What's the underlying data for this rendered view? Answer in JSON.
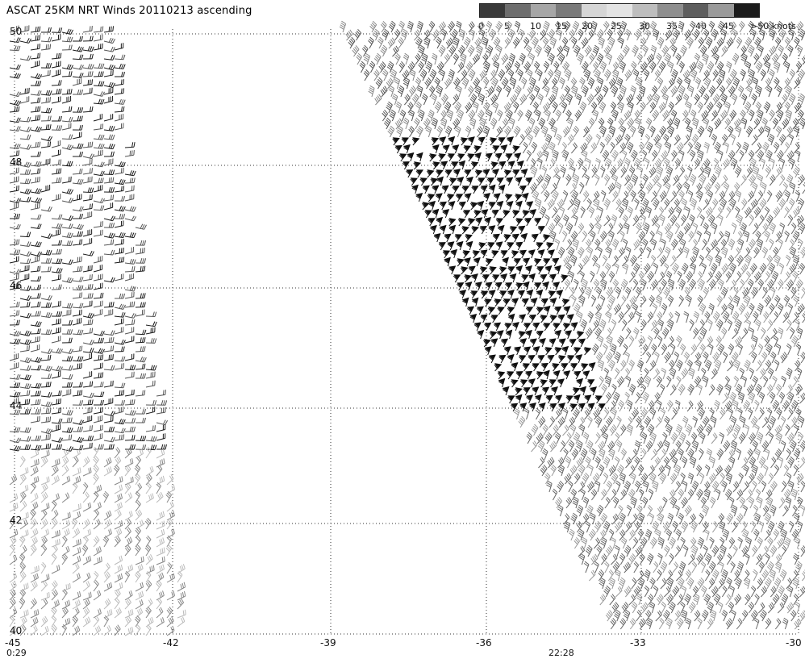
{
  "title": "ASCAT 25KM NRT Winds 20110213 ascending",
  "colorbar": {
    "labels": [
      "0",
      "5",
      "10",
      "15",
      "20",
      "25",
      "30",
      "35",
      "40",
      "45",
      ">50 knots"
    ],
    "colors": [
      "#3a3a3a",
      "#6e6e6e",
      "#a6a6a6",
      "#7a7a7a",
      "#d6d6d6",
      "#e4e4e4",
      "#bdbdbd",
      "#8e8e8e",
      "#5e5e5e",
      "#9a9a9a",
      "#1c1c1c"
    ]
  },
  "lat_labels": [
    "50",
    "48",
    "46",
    "44",
    "42",
    "40"
  ],
  "lon_labels": [
    "-45",
    "-42",
    "-39",
    "-36",
    "-33",
    "-30"
  ],
  "time_labels": [
    "0:29",
    "22:28"
  ],
  "map": {
    "lon_range": [
      -45,
      -30
    ],
    "lat_range": [
      40,
      50
    ]
  }
}
